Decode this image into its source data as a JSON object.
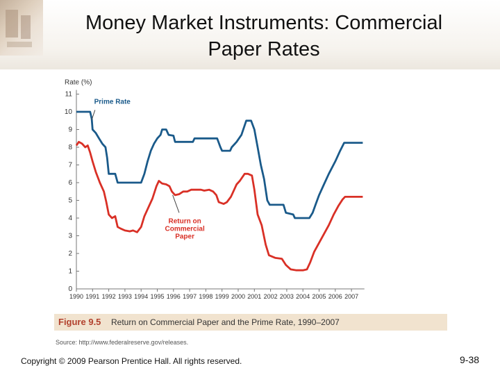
{
  "slide": {
    "title_line1": "Money Market Instruments: Commercial",
    "title_line2": "Paper Rates",
    "figure_label": "Figure 9.5",
    "figure_caption": "Return on Commercial Paper and the Prime Rate, 1990–2007",
    "source": "Source: http://www.federalreserve.gov/releases.",
    "copyright": "Copyright © 2009 Pearson Prentice Hall. All rights reserved.",
    "page_number": "9-38"
  },
  "chart_data": {
    "type": "line",
    "title": "",
    "ylabel": "Rate (%)",
    "xlabel": "",
    "ylim": [
      0,
      11
    ],
    "xlim": [
      1990,
      2007.8
    ],
    "y_ticks": [
      0,
      1,
      2,
      3,
      4,
      5,
      6,
      7,
      8,
      9,
      10,
      11
    ],
    "x_ticks": [
      "1990",
      "1991",
      "1992",
      "1993",
      "1994",
      "1995",
      "1996",
      "1997",
      "1998",
      "1999",
      "2000",
      "2001",
      "2002",
      "2003",
      "2004",
      "2005",
      "2006",
      "2007"
    ],
    "grid": false,
    "annotations": [
      {
        "text": "Prime Rate",
        "series": "Prime Rate",
        "color": "#1a5a8a"
      },
      {
        "text": "Return on Commercial Paper",
        "lines": [
          "Return on",
          "Commercial",
          "Paper"
        ],
        "series": "Return on Commercial Paper",
        "color": "#d93026"
      }
    ],
    "series": [
      {
        "name": "Prime Rate",
        "color": "#1a5a8a",
        "points": [
          [
            1990.0,
            10.0
          ],
          [
            1990.85,
            10.0
          ],
          [
            1990.95,
            9.6
          ],
          [
            1991.0,
            9.0
          ],
          [
            1991.2,
            8.8
          ],
          [
            1991.4,
            8.5
          ],
          [
            1991.6,
            8.2
          ],
          [
            1991.8,
            8.0
          ],
          [
            1991.9,
            7.4
          ],
          [
            1992.0,
            6.5
          ],
          [
            1992.4,
            6.5
          ],
          [
            1992.55,
            6.0
          ],
          [
            1993.0,
            6.0
          ],
          [
            1994.0,
            6.0
          ],
          [
            1994.2,
            6.5
          ],
          [
            1994.4,
            7.2
          ],
          [
            1994.6,
            7.8
          ],
          [
            1994.8,
            8.2
          ],
          [
            1995.0,
            8.5
          ],
          [
            1995.2,
            8.7
          ],
          [
            1995.3,
            9.0
          ],
          [
            1995.55,
            9.0
          ],
          [
            1995.7,
            8.7
          ],
          [
            1996.0,
            8.65
          ],
          [
            1996.1,
            8.3
          ],
          [
            1997.2,
            8.3
          ],
          [
            1997.3,
            8.5
          ],
          [
            1998.7,
            8.5
          ],
          [
            1998.9,
            8.0
          ],
          [
            1999.0,
            7.8
          ],
          [
            1999.5,
            7.8
          ],
          [
            1999.6,
            8.0
          ],
          [
            1999.9,
            8.3
          ],
          [
            2000.2,
            8.7
          ],
          [
            2000.5,
            9.5
          ],
          [
            2000.8,
            9.5
          ],
          [
            2001.0,
            9.0
          ],
          [
            2001.2,
            8.0
          ],
          [
            2001.4,
            7.0
          ],
          [
            2001.6,
            6.2
          ],
          [
            2001.8,
            5.0
          ],
          [
            2001.95,
            4.75
          ],
          [
            2002.8,
            4.75
          ],
          [
            2002.95,
            4.3
          ],
          [
            2003.4,
            4.2
          ],
          [
            2003.5,
            4.0
          ],
          [
            2004.4,
            4.0
          ],
          [
            2004.6,
            4.3
          ],
          [
            2004.8,
            4.8
          ],
          [
            2005.0,
            5.3
          ],
          [
            2005.3,
            5.9
          ],
          [
            2005.6,
            6.5
          ],
          [
            2006.0,
            7.2
          ],
          [
            2006.3,
            7.8
          ],
          [
            2006.55,
            8.25
          ],
          [
            2007.7,
            8.25
          ]
        ]
      },
      {
        "name": "Return on Commercial Paper",
        "color": "#d93026",
        "points": [
          [
            1990.0,
            8.1
          ],
          [
            1990.15,
            8.3
          ],
          [
            1990.35,
            8.2
          ],
          [
            1990.55,
            8.0
          ],
          [
            1990.7,
            8.1
          ],
          [
            1990.85,
            7.7
          ],
          [
            1991.0,
            7.2
          ],
          [
            1991.2,
            6.6
          ],
          [
            1991.45,
            6.0
          ],
          [
            1991.7,
            5.5
          ],
          [
            1991.85,
            4.9
          ],
          [
            1992.0,
            4.2
          ],
          [
            1992.2,
            4.0
          ],
          [
            1992.4,
            4.1
          ],
          [
            1992.55,
            3.5
          ],
          [
            1992.75,
            3.4
          ],
          [
            1993.0,
            3.3
          ],
          [
            1993.3,
            3.25
          ],
          [
            1993.5,
            3.3
          ],
          [
            1993.75,
            3.2
          ],
          [
            1994.0,
            3.5
          ],
          [
            1994.2,
            4.1
          ],
          [
            1994.45,
            4.6
          ],
          [
            1994.7,
            5.1
          ],
          [
            1994.95,
            5.8
          ],
          [
            1995.1,
            6.1
          ],
          [
            1995.3,
            5.95
          ],
          [
            1995.55,
            5.9
          ],
          [
            1995.75,
            5.8
          ],
          [
            1995.9,
            5.5
          ],
          [
            1996.1,
            5.3
          ],
          [
            1996.35,
            5.35
          ],
          [
            1996.6,
            5.5
          ],
          [
            1996.85,
            5.5
          ],
          [
            1997.1,
            5.6
          ],
          [
            1997.4,
            5.6
          ],
          [
            1997.7,
            5.6
          ],
          [
            1997.9,
            5.55
          ],
          [
            1998.2,
            5.6
          ],
          [
            1998.45,
            5.5
          ],
          [
            1998.65,
            5.3
          ],
          [
            1998.8,
            4.9
          ],
          [
            1999.1,
            4.8
          ],
          [
            1999.3,
            4.9
          ],
          [
            1999.55,
            5.2
          ],
          [
            1999.75,
            5.6
          ],
          [
            1999.9,
            5.9
          ],
          [
            2000.1,
            6.1
          ],
          [
            2000.4,
            6.5
          ],
          [
            2000.6,
            6.5
          ],
          [
            2000.85,
            6.4
          ],
          [
            2001.0,
            5.6
          ],
          [
            2001.2,
            4.2
          ],
          [
            2001.45,
            3.6
          ],
          [
            2001.7,
            2.5
          ],
          [
            2001.9,
            1.9
          ],
          [
            2002.3,
            1.75
          ],
          [
            2002.7,
            1.7
          ],
          [
            2002.95,
            1.35
          ],
          [
            2003.25,
            1.1
          ],
          [
            2003.6,
            1.05
          ],
          [
            2004.0,
            1.05
          ],
          [
            2004.25,
            1.1
          ],
          [
            2004.45,
            1.5
          ],
          [
            2004.7,
            2.1
          ],
          [
            2005.0,
            2.6
          ],
          [
            2005.3,
            3.1
          ],
          [
            2005.6,
            3.6
          ],
          [
            2005.9,
            4.2
          ],
          [
            2006.2,
            4.7
          ],
          [
            2006.45,
            5.05
          ],
          [
            2006.6,
            5.2
          ],
          [
            2007.7,
            5.2
          ]
        ]
      }
    ]
  }
}
